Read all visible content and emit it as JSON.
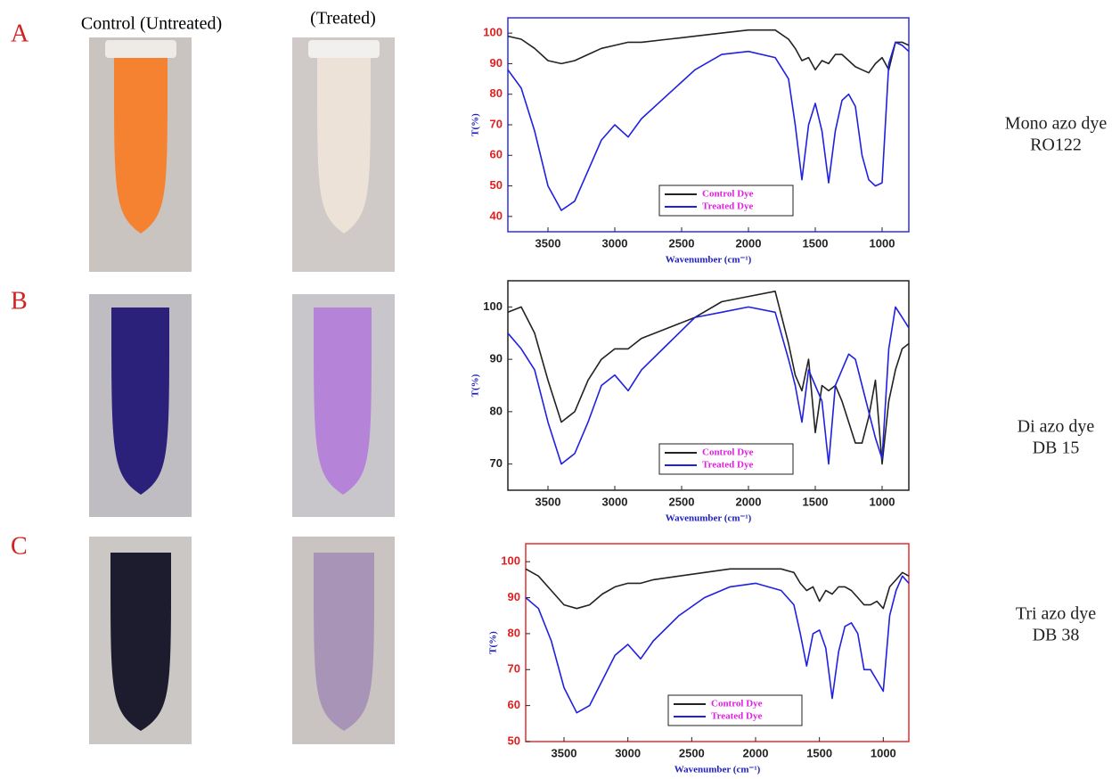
{
  "photo_headers": [
    "Control (Untreated)",
    "(Treated)"
  ],
  "chart_data": [
    {
      "type": "line",
      "panel": "A",
      "annotation": [
        "Mono azo dye",
        "RO122"
      ],
      "x_label": "Wavenumber (cm⁻¹)",
      "y_label": "T(%)",
      "x": [
        3800,
        3700,
        3600,
        3500,
        3400,
        3300,
        3200,
        3100,
        3000,
        2900,
        2800,
        2600,
        2400,
        2200,
        2000,
        1800,
        1700,
        1650,
        1600,
        1550,
        1500,
        1450,
        1400,
        1350,
        1300,
        1250,
        1200,
        1150,
        1100,
        1050,
        1000,
        950,
        900,
        850,
        800
      ],
      "series": [
        {
          "name": "Control Dye",
          "color": "#222222",
          "values": [
            99,
            98,
            95,
            91,
            90,
            91,
            93,
            95,
            96,
            97,
            97,
            98,
            99,
            100,
            101,
            101,
            98,
            95,
            91,
            92,
            88,
            91,
            90,
            93,
            93,
            91,
            89,
            88,
            87,
            90,
            92,
            88,
            97,
            97,
            96
          ]
        },
        {
          "name": "Treated Dye",
          "color": "#2020e0",
          "values": [
            88,
            82,
            68,
            50,
            42,
            45,
            55,
            65,
            70,
            66,
            72,
            80,
            88,
            93,
            94,
            92,
            85,
            70,
            52,
            70,
            77,
            68,
            51,
            68,
            78,
            80,
            76,
            60,
            52,
            50,
            51,
            90,
            97,
            96,
            94
          ]
        }
      ],
      "xlim": [
        3800,
        800
      ],
      "ylim": [
        35,
        105
      ],
      "xticks": [
        3500,
        3000,
        2500,
        2000,
        1500,
        1000
      ],
      "yticks": [
        40,
        50,
        60,
        70,
        80,
        90,
        100
      ],
      "legend": "lower center",
      "legend_text_color": "#e020e0",
      "frame_color": "#3030e0",
      "tick_color": "#e02020"
    },
    {
      "type": "line",
      "panel": "B",
      "annotation": [
        "Di azo dye",
        "DB 15"
      ],
      "x_label": "Wavenumber (cm⁻¹)",
      "y_label": "T(%)",
      "x": [
        3800,
        3700,
        3600,
        3500,
        3400,
        3300,
        3200,
        3100,
        3000,
        2900,
        2800,
        2600,
        2400,
        2200,
        2000,
        1800,
        1700,
        1650,
        1600,
        1550,
        1500,
        1450,
        1400,
        1350,
        1300,
        1250,
        1200,
        1150,
        1100,
        1050,
        1000,
        950,
        900,
        850,
        800
      ],
      "series": [
        {
          "name": "Control Dye",
          "color": "#222222",
          "values": [
            99,
            100,
            95,
            86,
            78,
            80,
            86,
            90,
            92,
            92,
            94,
            96,
            98,
            101,
            102,
            103,
            93,
            87,
            84,
            90,
            76,
            85,
            84,
            85,
            82,
            78,
            74,
            74,
            79,
            86,
            70,
            82,
            88,
            92,
            93
          ]
        },
        {
          "name": "Treated Dye",
          "color": "#2020e0",
          "values": [
            95,
            92,
            88,
            78,
            70,
            72,
            78,
            85,
            87,
            84,
            88,
            93,
            98,
            99,
            100,
            99,
            90,
            85,
            78,
            88,
            85,
            82,
            70,
            85,
            88,
            91,
            90,
            85,
            80,
            75,
            71,
            92,
            100,
            98,
            96
          ]
        }
      ],
      "xlim": [
        3800,
        800
      ],
      "ylim": [
        65,
        105
      ],
      "xticks": [
        3500,
        3000,
        2500,
        2000,
        1500,
        1000
      ],
      "yticks": [
        70,
        80,
        90,
        100
      ],
      "legend": "lower center",
      "legend_text_color": "#e020e0",
      "frame_color": "#222222",
      "tick_color": "#222222"
    },
    {
      "type": "line",
      "panel": "C",
      "annotation": [
        "Tri azo dye",
        "DB 38"
      ],
      "x_label": "Wavenumber (cm⁻¹)",
      "y_label": "T(%)",
      "x": [
        3800,
        3700,
        3600,
        3500,
        3400,
        3300,
        3200,
        3100,
        3000,
        2900,
        2800,
        2600,
        2400,
        2200,
        2000,
        1800,
        1700,
        1650,
        1600,
        1550,
        1500,
        1450,
        1400,
        1350,
        1300,
        1250,
        1200,
        1150,
        1100,
        1050,
        1000,
        950,
        900,
        850,
        800
      ],
      "series": [
        {
          "name": "Control Dye",
          "color": "#222222",
          "values": [
            98,
            96,
            92,
            88,
            87,
            88,
            91,
            93,
            94,
            94,
            95,
            96,
            97,
            98,
            98,
            98,
            97,
            94,
            92,
            93,
            89,
            92,
            91,
            93,
            93,
            92,
            90,
            88,
            88,
            89,
            87,
            93,
            95,
            97,
            96
          ]
        },
        {
          "name": "Treated Dye",
          "color": "#2020e0",
          "values": [
            90,
            87,
            78,
            65,
            58,
            60,
            67,
            74,
            77,
            73,
            78,
            85,
            90,
            93,
            94,
            92,
            88,
            80,
            71,
            80,
            81,
            76,
            62,
            75,
            82,
            83,
            80,
            70,
            70,
            67,
            64,
            85,
            92,
            96,
            94
          ]
        }
      ],
      "xlim": [
        3800,
        800
      ],
      "ylim": [
        50,
        105
      ],
      "xticks": [
        3500,
        3000,
        2500,
        2000,
        1500,
        1000
      ],
      "yticks": [
        50,
        60,
        70,
        80,
        90,
        100
      ],
      "legend": "lower center",
      "legend_text_color": "#e020e0",
      "frame_color": "#e03030",
      "tick_color": "#e02020"
    }
  ]
}
